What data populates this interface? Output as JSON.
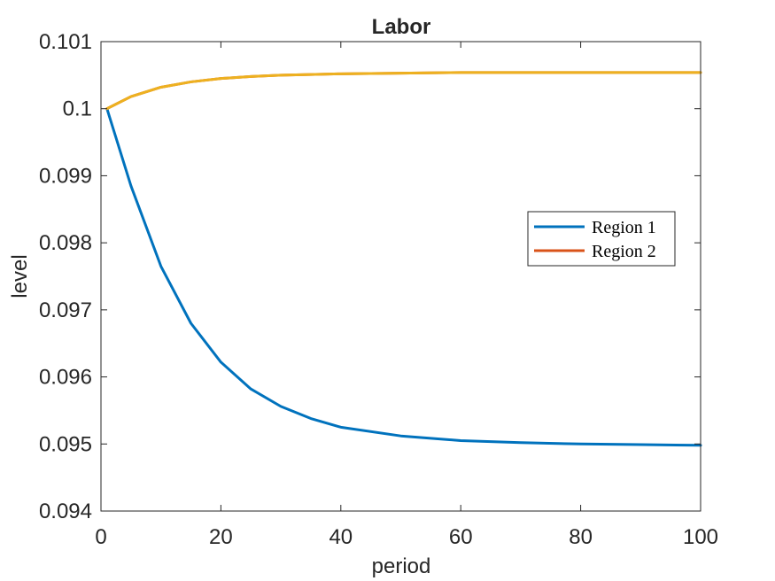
{
  "chart_data": {
    "type": "line",
    "title": "Labor",
    "xlabel": "period",
    "ylabel": "level",
    "xlim": [
      0,
      100
    ],
    "ylim": [
      0.094,
      0.101
    ],
    "xticks": [
      0,
      20,
      40,
      60,
      80,
      100
    ],
    "xtick_labels": [
      "0",
      "20",
      "40",
      "60",
      "80",
      "100"
    ],
    "yticks": [
      0.094,
      0.095,
      0.096,
      0.097,
      0.098,
      0.099,
      0.1,
      0.101
    ],
    "ytick_labels": [
      "0.094",
      "0.095",
      "0.096",
      "0.097",
      "0.098",
      "0.099",
      "0.1",
      "0.101"
    ],
    "grid": false,
    "legend": {
      "placement": "right",
      "entries": [
        "Region 1",
        "Region 2"
      ]
    },
    "series": [
      {
        "name": "Region 1",
        "color": "#0072BD",
        "x": [
          1,
          5,
          10,
          15,
          20,
          25,
          30,
          35,
          40,
          50,
          60,
          70,
          80,
          90,
          100
        ],
        "y": [
          0.1,
          0.09885,
          0.09765,
          0.0968,
          0.09622,
          0.09582,
          0.09556,
          0.09538,
          0.09525,
          0.09512,
          0.09505,
          0.09502,
          0.095,
          0.09499,
          0.09498
        ]
      },
      {
        "name": "Region 2",
        "color": "#D95319",
        "x": [
          1,
          5,
          10,
          15,
          20,
          25,
          30,
          35,
          40,
          50,
          60,
          70,
          80,
          90,
          100
        ],
        "y": [
          0.1,
          0.10018,
          0.10032,
          0.1004,
          0.10045,
          0.10048,
          0.1005,
          0.10051,
          0.10052,
          0.10053,
          0.10054,
          0.10054,
          0.10054,
          0.10054,
          0.10054
        ]
      },
      {
        "name": "",
        "color": "#EDB120",
        "x": [
          1,
          5,
          10,
          15,
          20,
          25,
          30,
          35,
          40,
          50,
          60,
          70,
          80,
          90,
          100
        ],
        "y": [
          0.1,
          0.10018,
          0.10032,
          0.1004,
          0.10045,
          0.10048,
          0.1005,
          0.10051,
          0.10052,
          0.10053,
          0.10054,
          0.10054,
          0.10054,
          0.10054,
          0.10054
        ]
      }
    ]
  }
}
